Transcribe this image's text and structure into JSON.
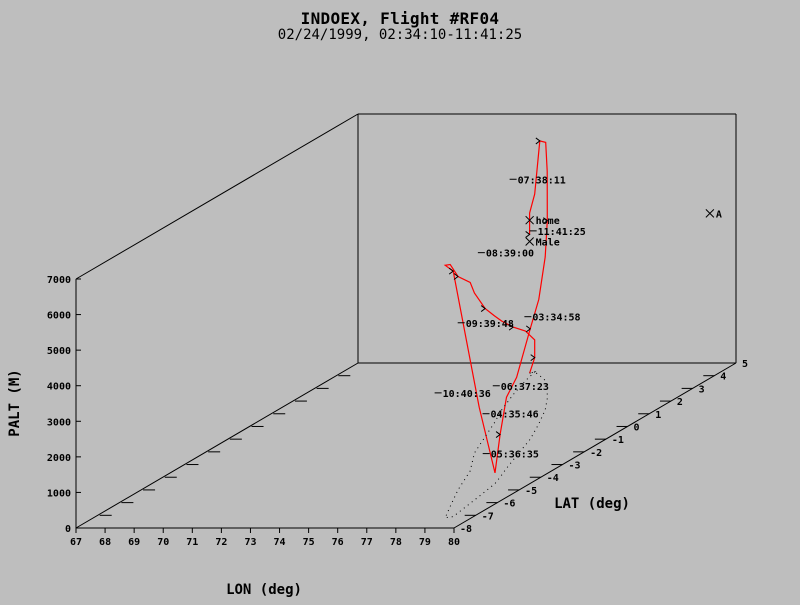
{
  "chart_data": {
    "type": "line",
    "title": "INDOEX, Flight #RF04",
    "subtitle": "02/24/1999, 02:34:10-11:41:25",
    "xlabel": "LON (deg)",
    "ylabel": "LAT (deg)",
    "zlabel": "PALT (M)",
    "xlim": [
      67,
      80
    ],
    "ylim": [
      -8,
      5
    ],
    "zlim": [
      0,
      7000
    ],
    "x_ticks": [
      "67",
      "68",
      "69",
      "70",
      "71",
      "72",
      "73",
      "74",
      "75",
      "76",
      "77",
      "78",
      "79",
      "80"
    ],
    "y_ticks": [
      "-8",
      "-7",
      "-6",
      "-5",
      "-4",
      "-3",
      "-2",
      "-1",
      "0",
      "1",
      "2",
      "3",
      "4",
      "5"
    ],
    "z_ticks": [
      "0",
      "1000",
      "2000",
      "3000",
      "4000",
      "5000",
      "6000",
      "7000"
    ],
    "track_color": "#ff0000",
    "grid": false,
    "series": [
      {
        "points": [
          [
            73.5,
            4.2,
            0
          ],
          [
            73.6,
            4.3,
            400
          ],
          [
            73.6,
            4.3,
            900
          ],
          [
            73.8,
            3.6,
            1400
          ],
          [
            74.2,
            2.5,
            1900
          ],
          [
            74.7,
            1.3,
            2500
          ],
          [
            75.2,
            0.3,
            3000
          ],
          [
            75.7,
            -0.8,
            3600
          ],
          [
            76.3,
            -2.1,
            4500
          ],
          [
            77.2,
            -3.5,
            5300
          ],
          [
            77.9,
            -5.0,
            6000
          ],
          [
            78.6,
            -6.3,
            6800
          ],
          [
            79.1,
            -7.2,
            7100
          ],
          [
            79.3,
            -7.1,
            6900
          ],
          [
            79.0,
            -5.5,
            2500
          ],
          [
            78.8,
            -4.5,
            300
          ],
          [
            78.6,
            -4.0,
            1200
          ],
          [
            78.3,
            -3.3,
            2000
          ],
          [
            77.9,
            -2.3,
            2200
          ],
          [
            77.4,
            -1.0,
            3100
          ],
          [
            76.8,
            0.2,
            3500
          ],
          [
            76.2,
            1.3,
            4300
          ],
          [
            75.6,
            2.2,
            5000
          ],
          [
            75.0,
            3.0,
            6100
          ],
          [
            74.5,
            3.6,
            6700
          ],
          [
            74.0,
            4.0,
            6600
          ],
          [
            73.6,
            4.3,
            5000
          ],
          [
            73.5,
            4.2,
            4500
          ],
          [
            73.5,
            4.2,
            3900
          ],
          [
            73.5,
            4.2,
            4100
          ]
        ]
      }
    ],
    "time_labels": [
      {
        "text": "03:34:58",
        "point": [
          76.9,
          -0.6,
          3300
        ]
      },
      {
        "text": "04:35:46",
        "point": [
          77.4,
          -3.2,
          1500
        ]
      },
      {
        "text": "05:36:35",
        "point": [
          78.6,
          -4.8,
          950
        ]
      },
      {
        "text": "06:37:23",
        "point": [
          78.2,
          -3.8,
          2500
        ]
      },
      {
        "text": "07:38:11",
        "point": [
          74.9,
          1.4,
          6450
        ]
      },
      {
        "text": "08:39:00",
        "point": [
          75.3,
          -0.6,
          5100
        ]
      },
      {
        "text": "09:39:48",
        "point": [
          75.8,
          -2.2,
          3700
        ]
      },
      {
        "text": "10:40:36",
        "point": [
          76.2,
          -3.8,
          2300
        ]
      },
      {
        "text": "11:41:25",
        "point": [
          73.5,
          4.2,
          4000
        ]
      }
    ],
    "markers": [
      {
        "text": "home",
        "point": [
          73.5,
          4.2,
          4300
        ]
      },
      {
        "text": "Male",
        "point": [
          73.5,
          4.2,
          3700
        ]
      },
      {
        "text": "A",
        "point": [
          79.4,
          4.6,
          4350
        ]
      }
    ]
  }
}
